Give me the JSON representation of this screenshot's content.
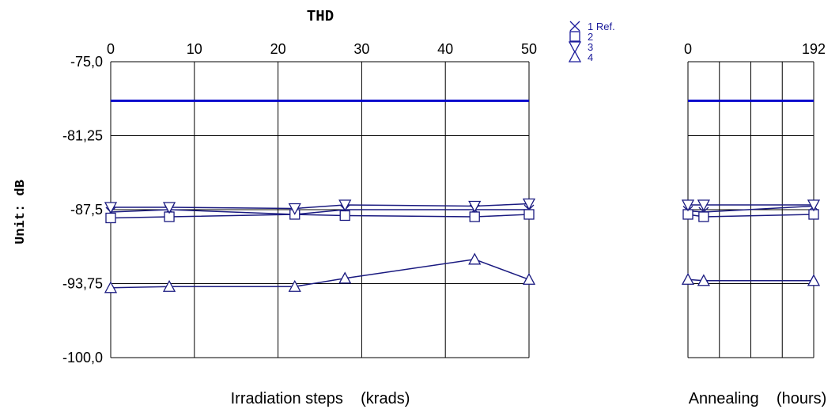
{
  "chart_data": {
    "type": "line",
    "title": "THD",
    "ylabel": "Unit: dB",
    "ylim": [
      -100.0,
      -75.0
    ],
    "yticks": [
      "-75,0",
      "-81,25",
      "-87,5",
      "-93,75",
      "-100,0"
    ],
    "yticks_values": [
      -75.0,
      -81.25,
      -87.5,
      -93.75,
      -100.0
    ],
    "reference_line": -78.3,
    "colors": {
      "series": "#1a1a80",
      "reference": "#0000cc",
      "legend": "#1a1a9a"
    },
    "legend": [
      {
        "marker": "x",
        "label": "1 Ref."
      },
      {
        "marker": "square",
        "label": "2"
      },
      {
        "marker": "triangle-down",
        "label": "3"
      },
      {
        "marker": "triangle-up",
        "label": "4"
      }
    ],
    "panels": [
      {
        "name": "irradiation",
        "xlabel": "Irradiation steps    (krads)",
        "xlim": [
          0,
          50
        ],
        "xtick_values": [
          0,
          10,
          20,
          30,
          40,
          50
        ],
        "xtick_labels": [
          "0",
          "10",
          "20",
          "30",
          "40",
          "50"
        ],
        "series": [
          {
            "marker": "x",
            "x": [
              0,
              7,
              22,
              28,
              43.5,
              50
            ],
            "y": [
              -87.7,
              -87.5,
              -87.9,
              -87.5,
              -87.5,
              -87.5
            ]
          },
          {
            "marker": "square",
            "x": [
              0,
              7,
              22,
              28,
              43.5,
              50
            ],
            "y": [
              -88.2,
              -88.1,
              -87.9,
              -88.0,
              -88.1,
              -87.9
            ]
          },
          {
            "marker": "triangle-down",
            "x": [
              0,
              7,
              22,
              28,
              43.5,
              50
            ],
            "y": [
              -87.3,
              -87.3,
              -87.4,
              -87.1,
              -87.2,
              -87.0
            ]
          },
          {
            "marker": "triangle-up",
            "x": [
              0,
              7,
              22,
              28,
              43.5,
              50
            ],
            "y": [
              -94.1,
              -94.0,
              -94.0,
              -93.3,
              -91.7,
              -93.4
            ]
          }
        ]
      },
      {
        "name": "annealing",
        "xlabel": "Annealing    (hours)",
        "xlim": [
          0,
          192
        ],
        "xtick_values": [
          0,
          192
        ],
        "xtick_labels": [
          "0",
          "192"
        ],
        "grid_values": [
          48,
          96,
          144
        ],
        "series": [
          {
            "marker": "x",
            "x": [
              0,
              24,
              192
            ],
            "y": [
              -87.6,
              -87.7,
              -87.2
            ]
          },
          {
            "marker": "square",
            "x": [
              0,
              24,
              192
            ],
            "y": [
              -87.9,
              -88.1,
              -87.9
            ]
          },
          {
            "marker": "triangle-down",
            "x": [
              0,
              24,
              192
            ],
            "y": [
              -87.1,
              -87.1,
              -87.1
            ]
          },
          {
            "marker": "triangle-up",
            "x": [
              0,
              24,
              192
            ],
            "y": [
              -93.4,
              -93.5,
              -93.5
            ]
          }
        ]
      }
    ]
  }
}
